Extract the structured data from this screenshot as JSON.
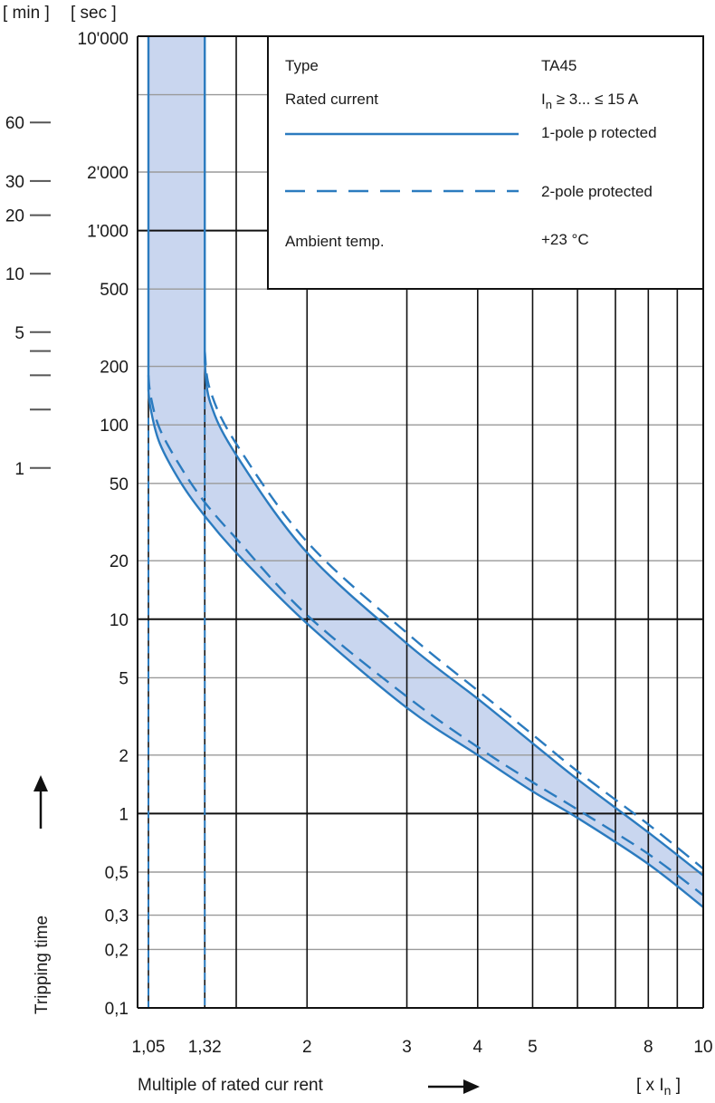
{
  "chart_data": {
    "type": "line",
    "x_scale": "log",
    "y_scale": "log",
    "xlim": [
      1,
      10
    ],
    "ylim_seconds": [
      0.1,
      10000
    ],
    "unit_headers": {
      "min": "[ min ]",
      "sec": "[ sec ]"
    },
    "x_ticks": [
      {
        "v": 1.05,
        "label": "1,05"
      },
      {
        "v": 1.32,
        "label": "1,32"
      },
      {
        "v": 2,
        "label": "2"
      },
      {
        "v": 3,
        "label": "3"
      },
      {
        "v": 4,
        "label": "4"
      },
      {
        "v": 5,
        "label": "5"
      },
      {
        "v": 8,
        "label": "8"
      },
      {
        "v": 10,
        "label": "10"
      }
    ],
    "x_grid": [
      1.05,
      1.32,
      1.5,
      2,
      3,
      4,
      5,
      6,
      7,
      8,
      9,
      10
    ],
    "y_ticks_sec": [
      {
        "v": 10000,
        "label": "10'000"
      },
      {
        "v": 2000,
        "label": "2'000"
      },
      {
        "v": 1000,
        "label": "1'000"
      },
      {
        "v": 500,
        "label": "500"
      },
      {
        "v": 200,
        "label": "200"
      },
      {
        "v": 100,
        "label": "100"
      },
      {
        "v": 50,
        "label": "50"
      },
      {
        "v": 20,
        "label": "20"
      },
      {
        "v": 10,
        "label": "10"
      },
      {
        "v": 5,
        "label": "5"
      },
      {
        "v": 2,
        "label": "2"
      },
      {
        "v": 1,
        "label": "1"
      },
      {
        "v": 0.5,
        "label": "0,5"
      },
      {
        "v": 0.3,
        "label": "0,3"
      },
      {
        "v": 0.2,
        "label": "0,2"
      },
      {
        "v": 0.1,
        "label": "0,1"
      }
    ],
    "y_ticks_min": [
      {
        "v": 3600,
        "label": "60"
      },
      {
        "v": 1800,
        "label": "30"
      },
      {
        "v": 1200,
        "label": "20"
      },
      {
        "v": 600,
        "label": "10"
      },
      {
        "v": 300,
        "label": "5"
      },
      {
        "v": 240,
        "label": ""
      },
      {
        "v": 180,
        "label": ""
      },
      {
        "v": 120,
        "label": ""
      },
      {
        "v": 60,
        "label": "1"
      }
    ],
    "y_grid_major": [
      10000,
      1000,
      10,
      1,
      0.1
    ],
    "y_grid_minor": [
      5000,
      2000,
      500,
      200,
      100,
      50,
      20,
      5,
      2,
      0.5,
      0.3,
      0.2
    ],
    "xlabel": "Multiple of rated cur rent",
    "xunit": "[ x I",
    "xunit_sub": "n",
    "xunit_end": " ]",
    "ylabel": "Tripping time",
    "legend": {
      "type_label": "Type",
      "type_value": "TA45",
      "rated_label": "Rated current",
      "rated_I": "I",
      "rated_sub": "n",
      "rated_rest": " ≥ 3... ≤ 15 A",
      "solid_label": "1-pole p rotected",
      "dashed_label": "2-pole protected",
      "ambient_label": "Ambient temp.",
      "ambient_value": "+23 °C"
    },
    "series": [
      {
        "name": "1-pole p rotected",
        "style": "solid",
        "bound": "lower",
        "x": [
          1.05,
          1.06,
          1.1,
          1.2,
          1.32,
          1.5,
          2,
          3,
          4,
          5,
          6,
          8,
          10
        ],
        "y": [
          150,
          120,
          80,
          50,
          34,
          22,
          9.5,
          3.5,
          2.0,
          1.3,
          0.95,
          0.55,
          0.33
        ]
      },
      {
        "name": "1-pole p rotected",
        "style": "solid",
        "bound": "upper",
        "x": [
          1.32,
          1.35,
          1.5,
          2,
          3,
          4,
          5,
          6,
          8,
          10
        ],
        "y": [
          210,
          130,
          70,
          22,
          7.5,
          3.9,
          2.3,
          1.5,
          0.8,
          0.48
        ]
      },
      {
        "name": "2-pole protected",
        "style": "dashed",
        "bound": "lower",
        "x": [
          1.05,
          1.06,
          1.1,
          1.2,
          1.32,
          1.5,
          2,
          3,
          4,
          5,
          6,
          8,
          10
        ],
        "y": [
          180,
          140,
          95,
          60,
          40,
          26,
          10.5,
          4.0,
          2.2,
          1.45,
          1.05,
          0.62,
          0.38
        ]
      },
      {
        "name": "2-pole protected",
        "style": "dashed",
        "bound": "upper",
        "x": [
          1.32,
          1.35,
          1.5,
          2,
          3,
          4,
          5,
          6,
          8,
          10
        ],
        "y": [
          240,
          150,
          80,
          25,
          8.5,
          4.3,
          2.55,
          1.65,
          0.88,
          0.52
        ]
      }
    ],
    "vertical_asymptotes": [
      1.05,
      1.32
    ],
    "colors": {
      "curve": "#2b7bbf",
      "band": "#c9d6ef",
      "grid_major": "#111111",
      "grid_minor": "#9a9a9a"
    }
  }
}
